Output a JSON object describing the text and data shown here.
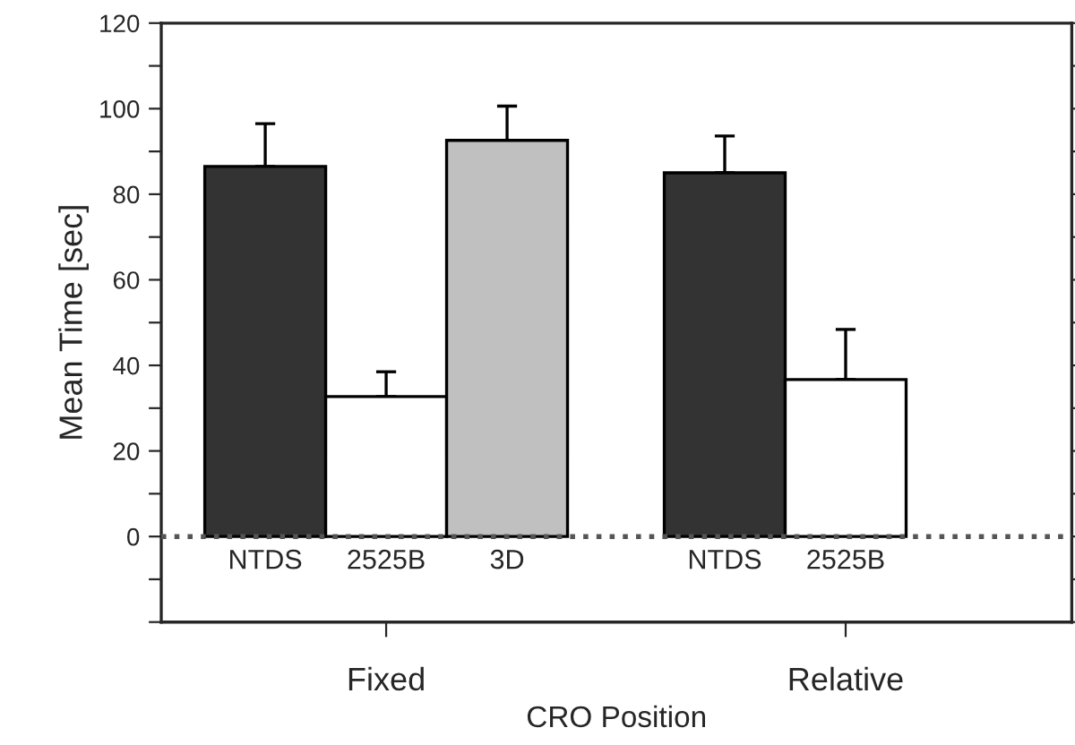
{
  "chart_data": {
    "type": "bar",
    "xlabel": "CRO Position",
    "ylabel": "Mean Time [sec]",
    "categories": [
      "NTDS",
      "2525B",
      "3D",
      "NTDS",
      "2525B"
    ],
    "values": [
      86.5,
      32.7,
      92.6,
      85,
      36.7
    ],
    "colors": [
      "#333333",
      "#ffffff",
      "#c0c0c0",
      "#333333",
      "#ffffff"
    ],
    "errors": [
      [
        86.5,
        96.5
      ],
      [
        32.7,
        38.5
      ],
      [
        92.6,
        100.6
      ],
      [
        85,
        93.6
      ],
      [
        36.7,
        48.4
      ]
    ],
    "ylim": [
      -20,
      120
    ],
    "yticks": [
      {
        "value": -20,
        "label": null
      },
      {
        "value": -10,
        "label": null
      },
      0,
      {
        "value": 10,
        "label": null
      },
      20,
      {
        "value": 30,
        "label": null
      },
      40,
      {
        "value": 50,
        "label": null
      },
      60,
      {
        "value": 70,
        "label": null
      },
      80,
      {
        "value": 90,
        "label": null
      },
      100,
      {
        "value": 110,
        "label": null
      },
      120
    ],
    "ref_lines": [
      {
        "axis": "y",
        "value": 0,
        "label": null,
        "line_style": "dotted",
        "color": "#555555"
      }
    ],
    "annotations": [
      "Fixed",
      "Relative"
    ],
    "grid": false,
    "legend": false
  }
}
